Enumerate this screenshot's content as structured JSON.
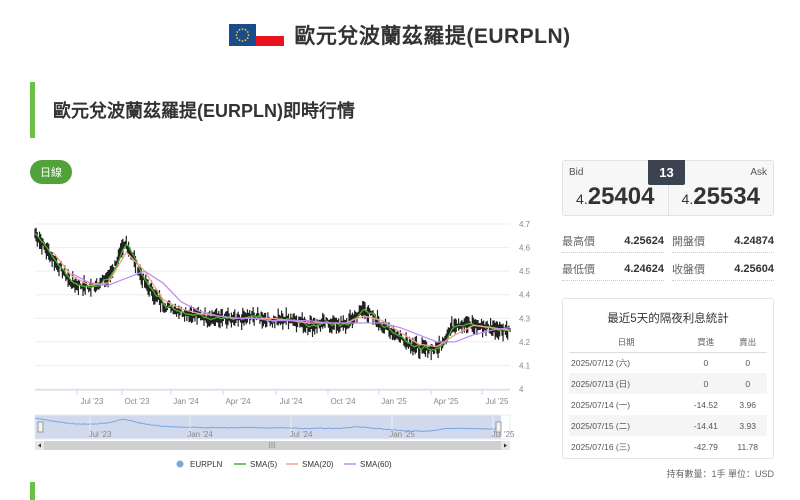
{
  "header": {
    "title": "歐元兌波蘭茲羅提(EURPLN)",
    "flags": [
      "eu-flag-icon",
      "poland-flag-icon"
    ]
  },
  "section": {
    "title": "歐元兌波蘭茲羅提(EURPLN)即時行情",
    "accent_color": "#6cc04a"
  },
  "tabs": [
    {
      "label": "日線",
      "active": true,
      "color": "#52a23a"
    }
  ],
  "quote": {
    "bid_label": "Bid",
    "bid_prefix": "4.",
    "bid_main": "25404",
    "ask_label": "Ask",
    "ask_prefix": "4.",
    "ask_main": "25534",
    "spread": "13"
  },
  "stats": {
    "high_label": "最高價",
    "high_value": "4.25624",
    "open_label": "開盤價",
    "open_value": "4.24874",
    "low_label": "最低價",
    "low_value": "4.24624",
    "close_label": "收盤價",
    "close_value": "4.25604"
  },
  "overnight": {
    "title": "最近5天的隔夜利息統計",
    "headers": [
      "日期",
      "買進",
      "賣出"
    ],
    "rows": [
      {
        "date": "2025/07/12 (六)",
        "buy": "0",
        "sell": "0"
      },
      {
        "date": "2025/07/13 (日)",
        "buy": "0",
        "sell": "0"
      },
      {
        "date": "2025/07/14 (一)",
        "buy": "-14.52",
        "sell": "3.96"
      },
      {
        "date": "2025/07/15 (二)",
        "buy": "-14.41",
        "sell": "3.93"
      },
      {
        "date": "2025/07/16 (三)",
        "buy": "-42.79",
        "sell": "11.78"
      }
    ],
    "footnote": "持有數量：1手 單位：USD"
  },
  "navigator": {
    "labels": [
      "Jul '23",
      "Jan '24",
      "Jul '24",
      "Jan '25",
      "Jul '25"
    ],
    "scrollbar_grip": "III"
  },
  "chart_data": {
    "type": "line",
    "title": "",
    "xlabel": "",
    "ylabel": "",
    "ylim": [
      4.0,
      4.7
    ],
    "yticks": [
      "4.7",
      "4.6",
      "4.5",
      "4.4",
      "4.3",
      "4.2",
      "4.1",
      "4"
    ],
    "xticks": [
      "Jul '23",
      "Oct '23",
      "Jan '24",
      "Apr '24",
      "Jul '24",
      "Oct '24",
      "Jan '25",
      "Apr '25",
      "Jul '25"
    ],
    "grid": true,
    "legend_position": "bottom",
    "legend": [
      "EURPLN",
      "SMA(5)",
      "SMA(20)",
      "SMA(60)"
    ],
    "colors": {
      "EURPLN": "#333333",
      "SMA(5)": "#4caf2a",
      "SMA(20)": "#f4a09a",
      "SMA(60)": "#c08ef0",
      "navigator": "#7aa7e0"
    },
    "x": [
      "2023-05",
      "2023-06",
      "2023-07",
      "2023-08",
      "2023-09",
      "2023-10",
      "2023-11",
      "2023-12",
      "2024-01",
      "2024-02",
      "2024-03",
      "2024-04",
      "2024-05",
      "2024-06",
      "2024-07",
      "2024-08",
      "2024-09",
      "2024-10",
      "2024-11",
      "2024-12",
      "2025-01",
      "2025-02",
      "2025-03",
      "2025-04",
      "2025-05",
      "2025-06",
      "2025-07"
    ],
    "series": [
      {
        "name": "EURPLN",
        "values": [
          4.66,
          4.55,
          4.45,
          4.43,
          4.47,
          4.62,
          4.45,
          4.36,
          4.33,
          4.31,
          4.3,
          4.29,
          4.31,
          4.29,
          4.3,
          4.27,
          4.28,
          4.27,
          4.34,
          4.27,
          4.22,
          4.17,
          4.17,
          4.28,
          4.27,
          4.26,
          4.25
        ]
      },
      {
        "name": "SMA(20)",
        "values": [
          null,
          4.58,
          4.48,
          4.44,
          4.45,
          4.58,
          4.5,
          4.38,
          4.34,
          4.32,
          4.31,
          4.3,
          4.3,
          4.3,
          4.29,
          4.28,
          4.28,
          4.28,
          4.31,
          4.29,
          4.24,
          4.19,
          4.18,
          4.23,
          4.27,
          4.26,
          4.25
        ]
      },
      {
        "name": "SMA(60)",
        "values": [
          null,
          null,
          4.49,
          4.45,
          4.44,
          4.47,
          4.5,
          4.45,
          4.37,
          4.33,
          4.31,
          4.3,
          4.3,
          4.29,
          4.29,
          4.29,
          4.28,
          4.28,
          4.28,
          4.28,
          4.26,
          4.23,
          4.2,
          4.2,
          4.23,
          4.25,
          4.26
        ]
      }
    ]
  }
}
